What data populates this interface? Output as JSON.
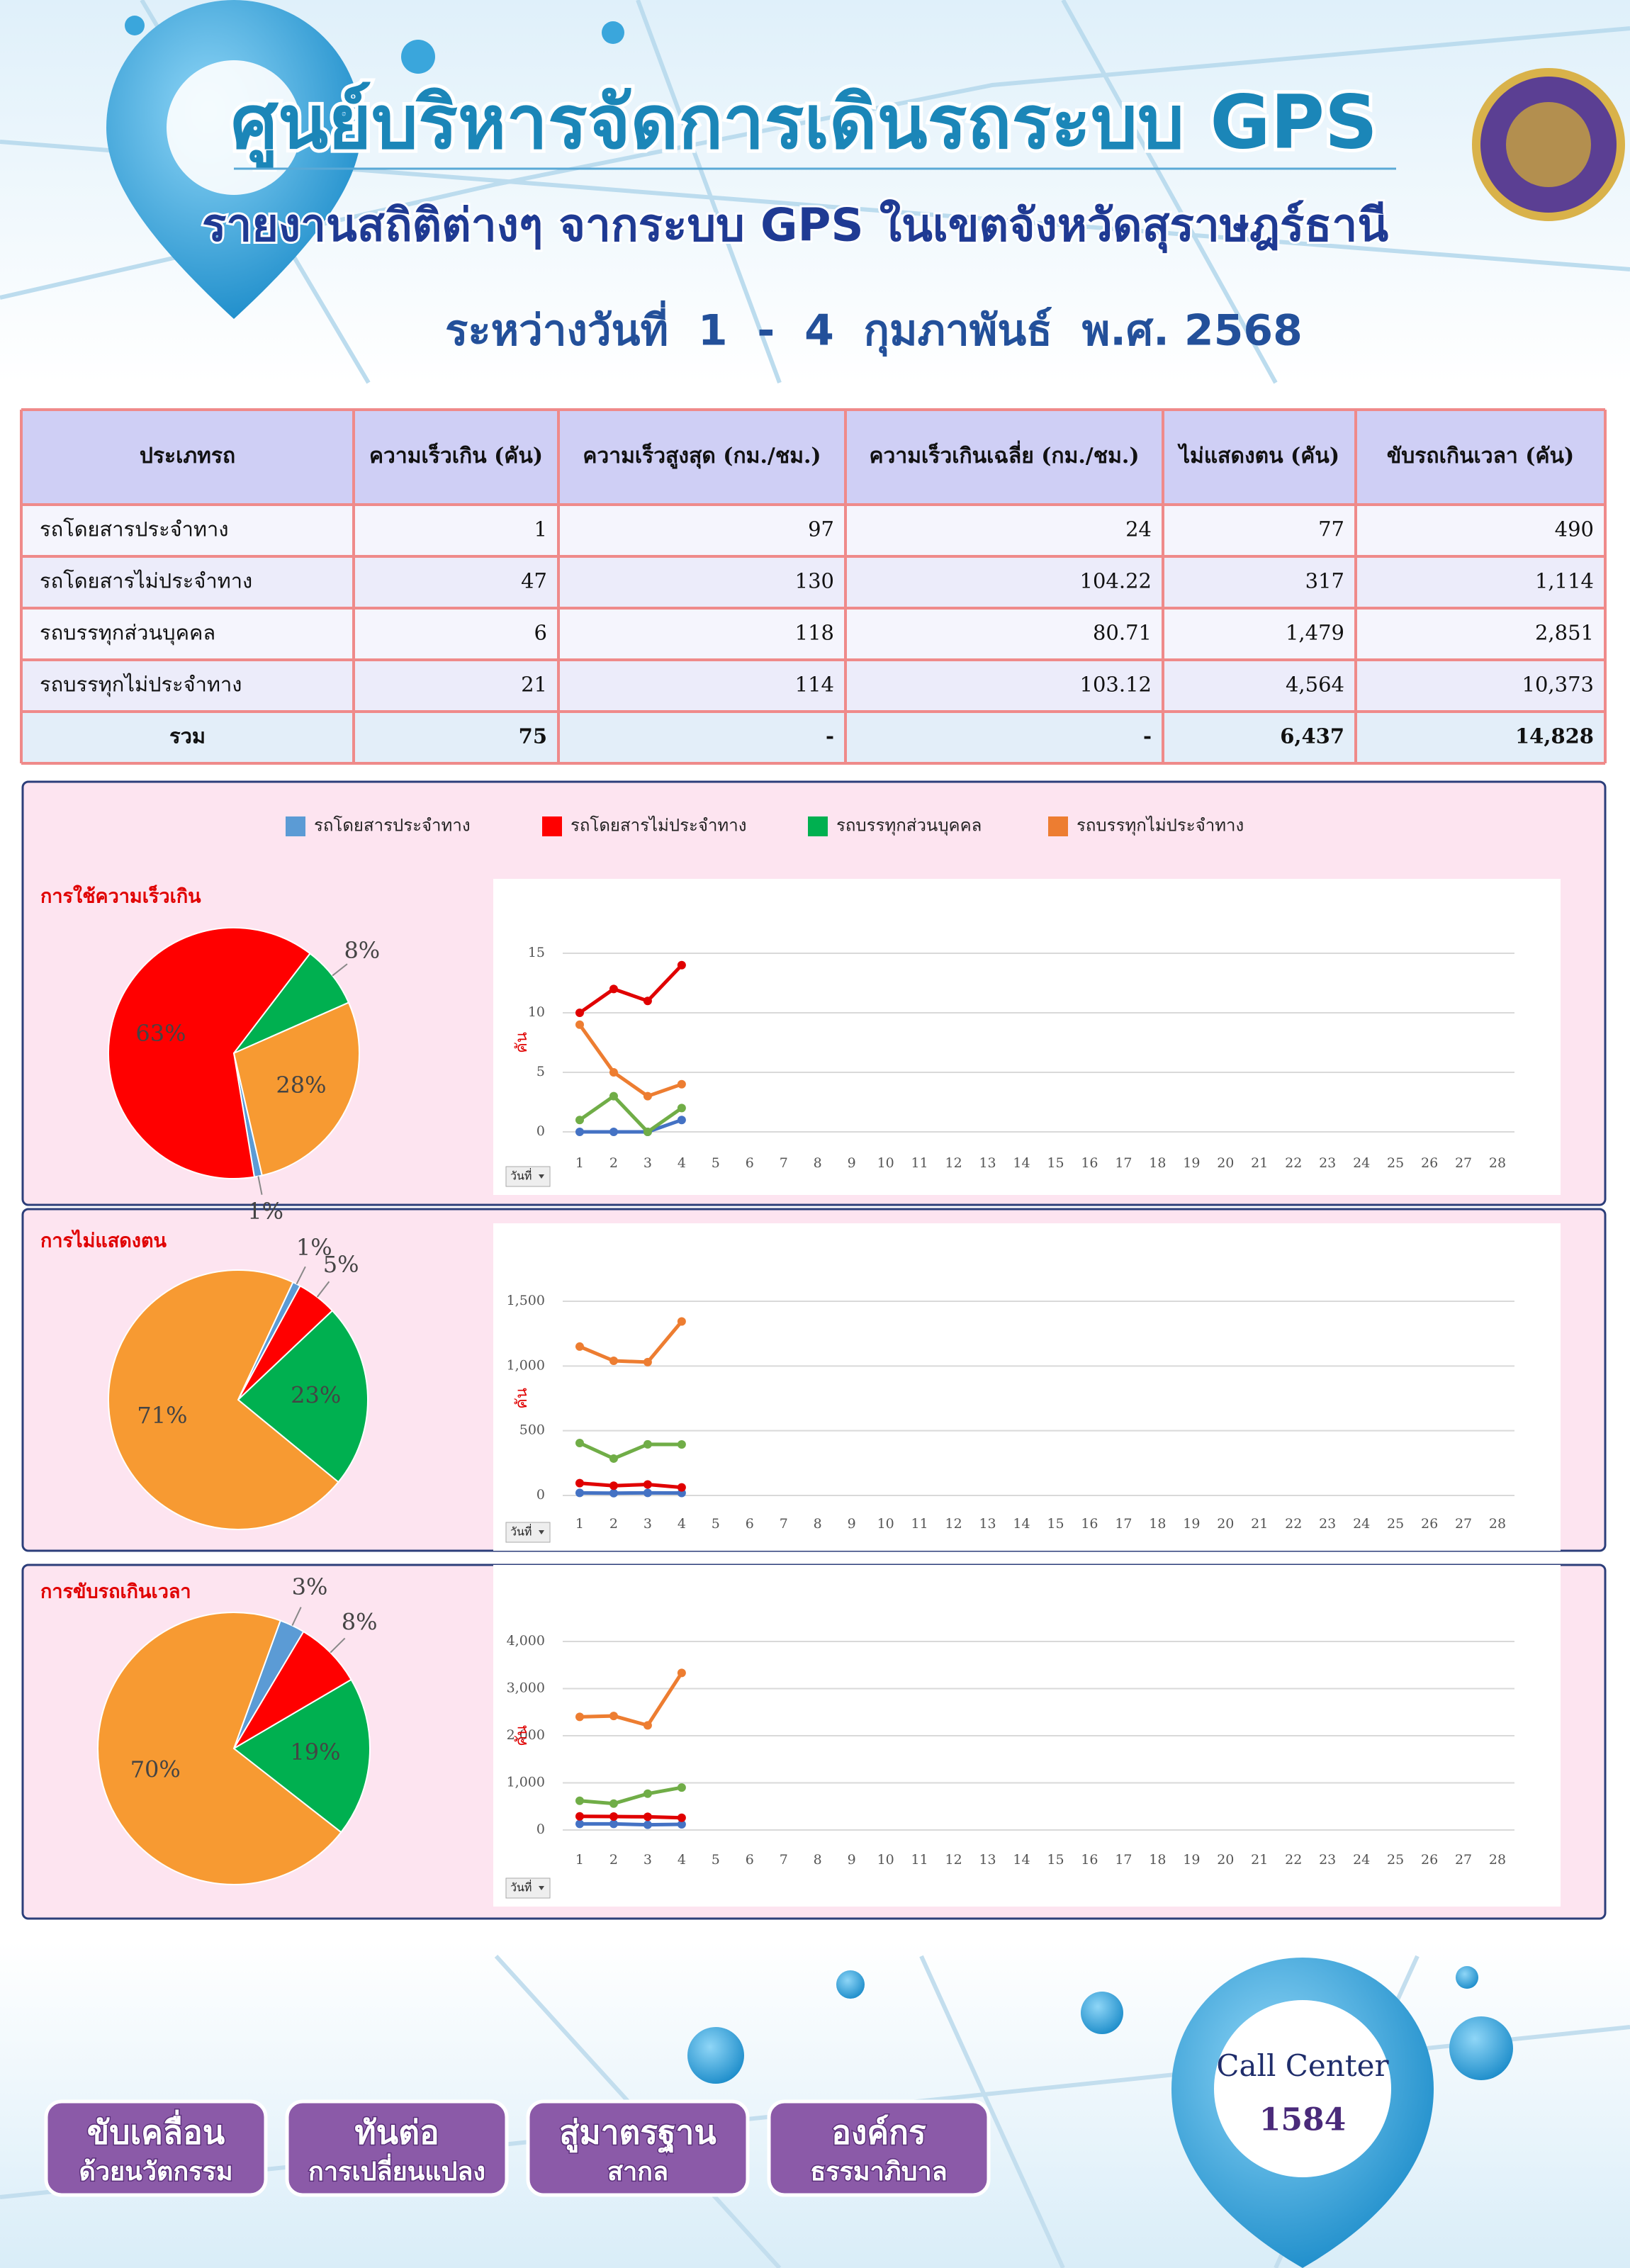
{
  "header": {
    "title": "ศูนย์บริหารจัดการเดินรถระบบ GPS",
    "subtitle": "รายงานสถิติต่างๆ จากระบบ GPS ในเขตจังหวัดสุราษฎร์ธานี",
    "date": "ระหว่างวันที่  1  -  4  กุมภาพันธ์  พ.ศ. 2568"
  },
  "table": {
    "columns": [
      "ประเภทรถ",
      "ความเร็วเกิน (คัน)",
      "ความเร็วสูงสุด (กม./ชม.)",
      "ความเร็วเกินเฉลี่ย (กม./ชม.)",
      "ไม่แสดงตน (คัน)",
      "ขับรถเกินเวลา (คัน)"
    ],
    "rows": [
      [
        "รถโดยสารประจำทาง",
        "1",
        "97",
        "24",
        "77",
        "490"
      ],
      [
        "รถโดยสารไม่ประจำทาง",
        "47",
        "130",
        "104.22",
        "317",
        "1,114"
      ],
      [
        "รถบรรทุกส่วนบุคคล",
        "6",
        "118",
        "80.71",
        "1,479",
        "2,851"
      ],
      [
        "รถบรรทุกไม่ประจำทาง",
        "21",
        "114",
        "103.12",
        "4,564",
        "10,373"
      ]
    ],
    "total": [
      "รวม",
      "75",
      "-",
      "-",
      "6,437",
      "14,828"
    ]
  },
  "legend": [
    {
      "name": "รถโดยสารประจำทาง",
      "color": "#5b9bd5"
    },
    {
      "name": "รถโดยสารไม่ประจำทาง",
      "color": "#ff0000"
    },
    {
      "name": "รถบรรทุกส่วนบุคคล",
      "color": "#00b050"
    },
    {
      "name": "รถบรรทุกไม่ประจำทาง",
      "color": "#ed7d31"
    }
  ],
  "chart_data": [
    {
      "type": "pie",
      "title": "การใช้ความเร็วเกิน",
      "values": [
        1,
        63,
        8,
        28
      ],
      "value_labels": [
        "1%",
        "63%",
        "8%",
        "28%"
      ],
      "colors": [
        "#5b9bd5",
        "#ff0000",
        "#00b050",
        "#f79a32"
      ]
    },
    {
      "type": "line",
      "ylabel": "คัน",
      "xlabel": "วันที่",
      "categories": [
        1,
        2,
        3,
        4,
        5,
        6,
        7,
        8,
        9,
        10,
        11,
        12,
        13,
        14,
        15,
        16,
        17,
        18,
        19,
        20,
        21,
        22,
        23,
        24,
        25,
        26,
        27,
        28
      ],
      "ylim": [
        0,
        15
      ],
      "yticks": [
        0,
        5,
        10,
        15
      ],
      "series": [
        {
          "color": "#4472c4",
          "values": [
            0,
            0,
            0,
            1,
            null,
            null,
            null,
            null,
            null,
            null,
            null,
            null,
            null,
            null,
            null,
            null,
            null,
            null,
            null,
            null,
            null,
            null,
            null,
            null,
            null,
            null,
            null,
            null
          ]
        },
        {
          "color": "#e00000",
          "values": [
            10,
            12,
            11,
            14,
            null,
            null,
            null,
            null,
            null,
            null,
            null,
            null,
            null,
            null,
            null,
            null,
            null,
            null,
            null,
            null,
            null,
            null,
            null,
            null,
            null,
            null,
            null,
            null
          ]
        },
        {
          "color": "#70ad47",
          "values": [
            1,
            3,
            0,
            2,
            null,
            null,
            null,
            null,
            null,
            null,
            null,
            null,
            null,
            null,
            null,
            null,
            null,
            null,
            null,
            null,
            null,
            null,
            null,
            null,
            null,
            null,
            null,
            null
          ]
        },
        {
          "color": "#ed7d31",
          "values": [
            9,
            5,
            3,
            4,
            null,
            null,
            null,
            null,
            null,
            null,
            null,
            null,
            null,
            null,
            null,
            null,
            null,
            null,
            null,
            null,
            null,
            null,
            null,
            null,
            null,
            null,
            null,
            null
          ]
        }
      ]
    },
    {
      "type": "pie",
      "title": "การไม่แสดงตน",
      "values": [
        1,
        5,
        23,
        71
      ],
      "value_labels": [
        "1%",
        "5%",
        "23%",
        "71%"
      ],
      "colors": [
        "#5b9bd5",
        "#ff0000",
        "#00b050",
        "#f79a32"
      ]
    },
    {
      "type": "line",
      "ylabel": "คัน",
      "xlabel": "วันที่",
      "categories": [
        1,
        2,
        3,
        4,
        5,
        6,
        7,
        8,
        9,
        10,
        11,
        12,
        13,
        14,
        15,
        16,
        17,
        18,
        19,
        20,
        21,
        22,
        23,
        24,
        25,
        26,
        27,
        28
      ],
      "ylim": [
        0,
        1500
      ],
      "yticks": [
        0,
        500,
        {
          "value": 1000,
          "label": "1,000"
        },
        {
          "value": 1500,
          "label": "1,500"
        }
      ],
      "series": [
        {
          "color": "#4472c4",
          "values": [
            20,
            18,
            20,
            19,
            null,
            null,
            null,
            null,
            null,
            null,
            null,
            null,
            null,
            null,
            null,
            null,
            null,
            null,
            null,
            null,
            null,
            null,
            null,
            null,
            null,
            null,
            null,
            null
          ]
        },
        {
          "color": "#e00000",
          "values": [
            95,
            75,
            85,
            62,
            null,
            null,
            null,
            null,
            null,
            null,
            null,
            null,
            null,
            null,
            null,
            null,
            null,
            null,
            null,
            null,
            null,
            null,
            null,
            null,
            null,
            null,
            null,
            null
          ]
        },
        {
          "color": "#70ad47",
          "values": [
            405,
            285,
            395,
            394,
            null,
            null,
            null,
            null,
            null,
            null,
            null,
            null,
            null,
            null,
            null,
            null,
            null,
            null,
            null,
            null,
            null,
            null,
            null,
            null,
            null,
            null,
            null,
            null
          ]
        },
        {
          "color": "#ed7d31",
          "values": [
            1150,
            1040,
            1030,
            1344,
            null,
            null,
            null,
            null,
            null,
            null,
            null,
            null,
            null,
            null,
            null,
            null,
            null,
            null,
            null,
            null,
            null,
            null,
            null,
            null,
            null,
            null,
            null,
            null
          ]
        }
      ]
    },
    {
      "type": "pie",
      "title": "การขับรถเกินเวลา",
      "values": [
        3,
        8,
        19,
        70
      ],
      "value_labels": [
        "3%",
        "8%",
        "19%",
        "70%"
      ],
      "colors": [
        "#5b9bd5",
        "#ff0000",
        "#00b050",
        "#f79a32"
      ]
    },
    {
      "type": "line",
      "ylabel": "คัน",
      "xlabel": "วันที่",
      "categories": [
        1,
        2,
        3,
        4,
        5,
        6,
        7,
        8,
        9,
        10,
        11,
        12,
        13,
        14,
        15,
        16,
        17,
        18,
        19,
        20,
        21,
        22,
        23,
        24,
        25,
        26,
        27,
        28
      ],
      "ylim": [
        0,
        4000
      ],
      "yticks": [
        0,
        {
          "value": 1000,
          "label": "1,000"
        },
        {
          "value": 2000,
          "label": "2,000"
        },
        {
          "value": 3000,
          "label": "3,000"
        },
        {
          "value": 4000,
          "label": "4,000"
        }
      ],
      "series": [
        {
          "color": "#4472c4",
          "values": [
            130,
            130,
            110,
            120,
            null,
            null,
            null,
            null,
            null,
            null,
            null,
            null,
            null,
            null,
            null,
            null,
            null,
            null,
            null,
            null,
            null,
            null,
            null,
            null,
            null,
            null,
            null,
            null
          ]
        },
        {
          "color": "#e00000",
          "values": [
            290,
            285,
            280,
            259,
            null,
            null,
            null,
            null,
            null,
            null,
            null,
            null,
            null,
            null,
            null,
            null,
            null,
            null,
            null,
            null,
            null,
            null,
            null,
            null,
            null,
            null,
            null,
            null
          ]
        },
        {
          "color": "#70ad47",
          "values": [
            620,
            560,
            770,
            901,
            null,
            null,
            null,
            null,
            null,
            null,
            null,
            null,
            null,
            null,
            null,
            null,
            null,
            null,
            null,
            null,
            null,
            null,
            null,
            null,
            null,
            null,
            null,
            null
          ]
        },
        {
          "color": "#ed7d31",
          "values": [
            2400,
            2420,
            2220,
            3333,
            null,
            null,
            null,
            null,
            null,
            null,
            null,
            null,
            null,
            null,
            null,
            null,
            null,
            null,
            null,
            null,
            null,
            null,
            null,
            null,
            null,
            null,
            null,
            null
          ]
        }
      ]
    }
  ],
  "footer": {
    "buttons": [
      {
        "line1": "ขับเคลื่อน",
        "line2": "ด้วยนวัตกรรม"
      },
      {
        "line1": "ทันต่อ",
        "line2": "การเปลี่ยนแปลง"
      },
      {
        "line1": "สู่มาตรฐาน",
        "line2": "สากล"
      },
      {
        "line1": "องค์กร",
        "line2": "ธรรมาภิบาล"
      }
    ],
    "call_center": "Call Center",
    "call_number": "1584"
  }
}
